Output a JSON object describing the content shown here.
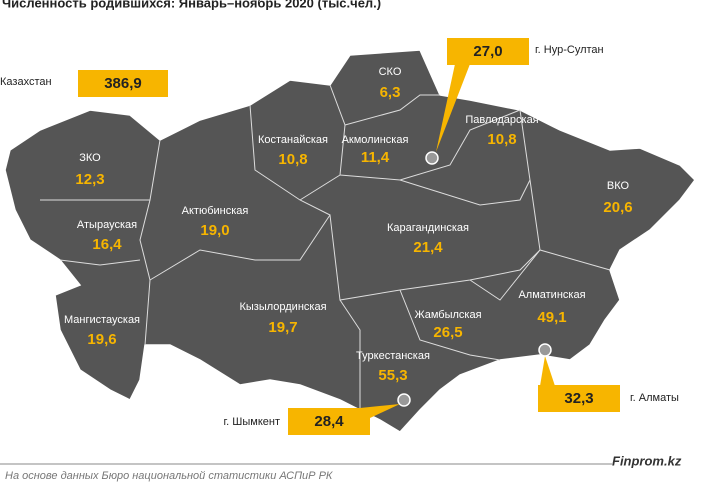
{
  "title": "Численность родившихся: Январь–ноябрь 2020 (тыс.чел.)",
  "total": {
    "name": "Казахстан",
    "value": "386,9"
  },
  "regions": [
    {
      "name": "ЗКО",
      "value": "12,3"
    },
    {
      "name": "Атырауская",
      "value": "16,4"
    },
    {
      "name": "Мангистауская",
      "value": "19,6"
    },
    {
      "name": "Актюбинская",
      "value": "19,0"
    },
    {
      "name": "Костанайская",
      "value": "10,8"
    },
    {
      "name": "СКО",
      "value": "6,3"
    },
    {
      "name": "Акмолинская",
      "value": "11,4"
    },
    {
      "name": "Павлодарская",
      "value": "10,8"
    },
    {
      "name": "ВКО",
      "value": "20,6"
    },
    {
      "name": "Карагандинская",
      "value": "21,4"
    },
    {
      "name": "Кызылординская",
      "value": "19,7"
    },
    {
      "name": "Жамбылская",
      "value": "26,5"
    },
    {
      "name": "Алматинская",
      "value": "49,1"
    },
    {
      "name": "Туркестанская",
      "value": "55,3"
    }
  ],
  "cities": [
    {
      "name": "г. Нур-Султан",
      "value": "27,0"
    },
    {
      "name": "г. Шымкент",
      "value": "28,4"
    },
    {
      "name": "г. Алматы",
      "value": "32,3"
    }
  ],
  "footer": {
    "source": "На основе данных Бюро национальной статистики АСПиР РК",
    "brand": "Finprom.kz"
  }
}
